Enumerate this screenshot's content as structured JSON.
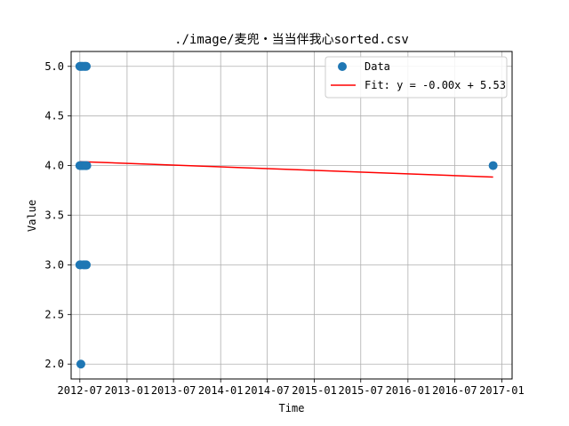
{
  "chart_data": {
    "type": "scatter",
    "title": "./image/麦兜・当当伴我心sorted.csv",
    "xlabel": "Time",
    "ylabel": "Value",
    "xlim": [
      "2012-05-28",
      "2017-02-10"
    ],
    "ylim": [
      1.85,
      5.15
    ],
    "x_ticks": [
      "2012-07",
      "2013-01",
      "2013-07",
      "2014-01",
      "2014-07",
      "2015-01",
      "2015-07",
      "2016-01",
      "2016-07",
      "2017-01"
    ],
    "y_ticks": [
      "2.0",
      "2.5",
      "3.0",
      "3.5",
      "4.0",
      "4.5",
      "5.0"
    ],
    "grid": true,
    "legend_position": "top-right",
    "series": [
      {
        "name": "Data",
        "kind": "scatter",
        "color": "#1f77b4",
        "points": [
          {
            "x": "2012-07-01",
            "y": 5.0
          },
          {
            "x": "2012-07-04",
            "y": 5.0
          },
          {
            "x": "2012-07-08",
            "y": 5.0
          },
          {
            "x": "2012-07-12",
            "y": 5.0
          },
          {
            "x": "2012-07-18",
            "y": 5.0
          },
          {
            "x": "2012-07-22",
            "y": 5.0
          },
          {
            "x": "2012-07-26",
            "y": 5.0
          },
          {
            "x": "2012-07-01",
            "y": 4.0
          },
          {
            "x": "2012-07-05",
            "y": 4.0
          },
          {
            "x": "2012-07-09",
            "y": 4.0
          },
          {
            "x": "2012-07-14",
            "y": 4.0
          },
          {
            "x": "2012-07-20",
            "y": 4.0
          },
          {
            "x": "2012-07-24",
            "y": 4.0
          },
          {
            "x": "2012-07-28",
            "y": 4.0
          },
          {
            "x": "2012-07-01",
            "y": 3.0
          },
          {
            "x": "2012-07-04",
            "y": 3.0
          },
          {
            "x": "2012-07-15",
            "y": 3.0
          },
          {
            "x": "2012-07-20",
            "y": 3.0
          },
          {
            "x": "2012-07-26",
            "y": 3.0
          },
          {
            "x": "2012-07-05",
            "y": 2.0
          },
          {
            "x": "2016-11-28",
            "y": 4.0
          }
        ]
      },
      {
        "name": "Fit: y = -0.00x + 5.53",
        "kind": "line",
        "color": "#ff0000",
        "points": [
          {
            "x": "2012-07-01",
            "y": 4.04
          },
          {
            "x": "2016-11-28",
            "y": 3.885
          }
        ]
      }
    ]
  }
}
